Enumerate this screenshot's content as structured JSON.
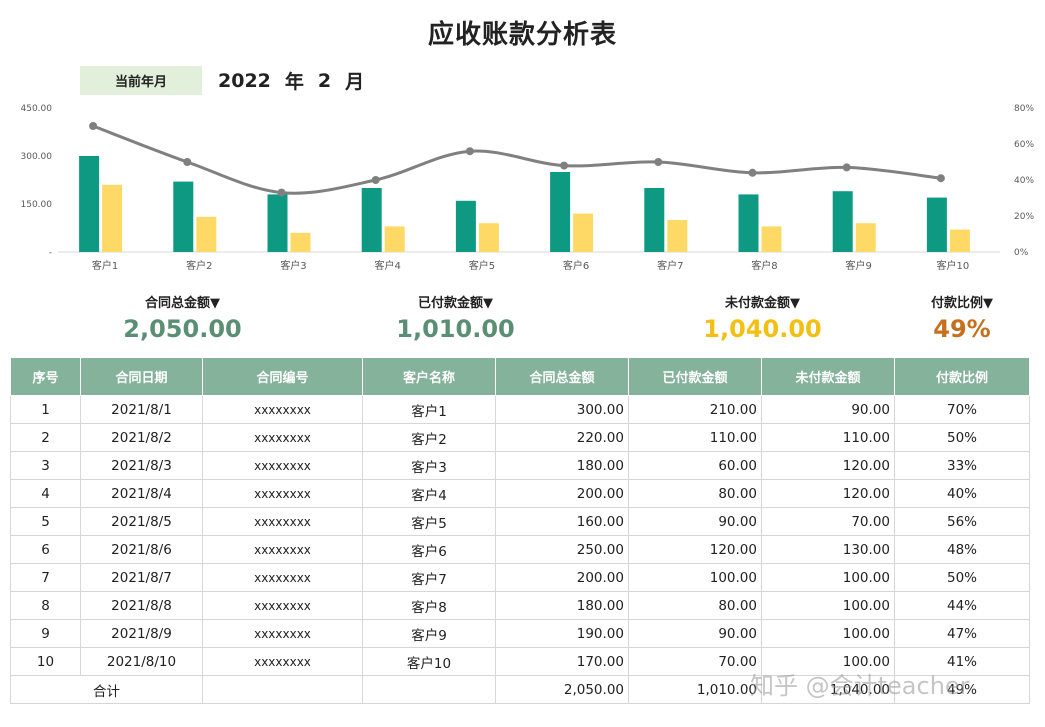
{
  "title": "应收账款分析表",
  "period": {
    "label": "当前年月",
    "year": "2022",
    "year_unit": "年",
    "month": "2",
    "month_unit": "月"
  },
  "summary": [
    {
      "label": "合同总金额▼",
      "value": "2,050.00",
      "color": "#5a8f73"
    },
    {
      "label": "已付款金额▼",
      "value": "1,010.00",
      "color": "#5a8f73"
    },
    {
      "label": "未付款金额▼",
      "value": "1,040.00",
      "color": "#f2c012"
    },
    {
      "label": "付款比例▼",
      "value": "49%",
      "color": "#c5701f"
    }
  ],
  "chart_data": {
    "type": "bar",
    "categories": [
      "客户1",
      "客户2",
      "客户3",
      "客户4",
      "客户5",
      "客户6",
      "客户7",
      "客户8",
      "客户9",
      "客户10"
    ],
    "series": [
      {
        "values": [
          300,
          220,
          180,
          200,
          160,
          250,
          200,
          180,
          190,
          170
        ],
        "color": "#0e9a82",
        "axis": "left",
        "kind": "bar"
      },
      {
        "values": [
          210,
          110,
          60,
          80,
          90,
          120,
          100,
          80,
          90,
          70
        ],
        "color": "#ffd966",
        "axis": "left",
        "kind": "bar"
      },
      {
        "values": [
          0.7,
          0.5,
          0.33,
          0.4,
          0.56,
          0.48,
          0.5,
          0.44,
          0.47,
          0.41
        ],
        "color": "#808080",
        "axis": "right",
        "kind": "line"
      }
    ],
    "y_left": {
      "ylim": [
        0,
        450
      ],
      "ticks": [
        "-",
        "150.00",
        "300.00",
        "450.00"
      ],
      "tick_values": [
        0,
        150,
        300,
        450
      ]
    },
    "y_right": {
      "ylim": [
        0,
        0.8
      ],
      "ticks": [
        "0%",
        "20%",
        "40%",
        "60%",
        "80%"
      ],
      "tick_values": [
        0,
        0.2,
        0.4,
        0.6,
        0.8
      ]
    },
    "grid": false,
    "legend": "none"
  },
  "table": {
    "headers": [
      "序号",
      "合同日期",
      "合同编号",
      "客户名称",
      "合同总金额",
      "已付款金额",
      "未付款金额",
      "付款比例"
    ],
    "rows": [
      [
        "1",
        "2021/8/1",
        "xxxxxxxx",
        "客户1",
        "300.00",
        "210.00",
        "90.00",
        "70%"
      ],
      [
        "2",
        "2021/8/2",
        "xxxxxxxx",
        "客户2",
        "220.00",
        "110.00",
        "110.00",
        "50%"
      ],
      [
        "3",
        "2021/8/3",
        "xxxxxxxx",
        "客户3",
        "180.00",
        "60.00",
        "120.00",
        "33%"
      ],
      [
        "4",
        "2021/8/4",
        "xxxxxxxx",
        "客户4",
        "200.00",
        "80.00",
        "120.00",
        "40%"
      ],
      [
        "5",
        "2021/8/5",
        "xxxxxxxx",
        "客户5",
        "160.00",
        "90.00",
        "70.00",
        "56%"
      ],
      [
        "6",
        "2021/8/6",
        "xxxxxxxx",
        "客户6",
        "250.00",
        "120.00",
        "130.00",
        "48%"
      ],
      [
        "7",
        "2021/8/7",
        "xxxxxxxx",
        "客户7",
        "200.00",
        "100.00",
        "100.00",
        "50%"
      ],
      [
        "8",
        "2021/8/8",
        "xxxxxxxx",
        "客户8",
        "180.00",
        "80.00",
        "100.00",
        "44%"
      ],
      [
        "9",
        "2021/8/9",
        "xxxxxxxx",
        "客户9",
        "190.00",
        "90.00",
        "100.00",
        "47%"
      ],
      [
        "10",
        "2021/8/10",
        "xxxxxxxx",
        "客户10",
        "170.00",
        "70.00",
        "100.00",
        "41%"
      ]
    ],
    "total": [
      "合计",
      "",
      "",
      "",
      "2,050.00",
      "1,010.00",
      "1,040.00",
      "49%"
    ]
  },
  "watermark": "知乎 @会计teacher"
}
